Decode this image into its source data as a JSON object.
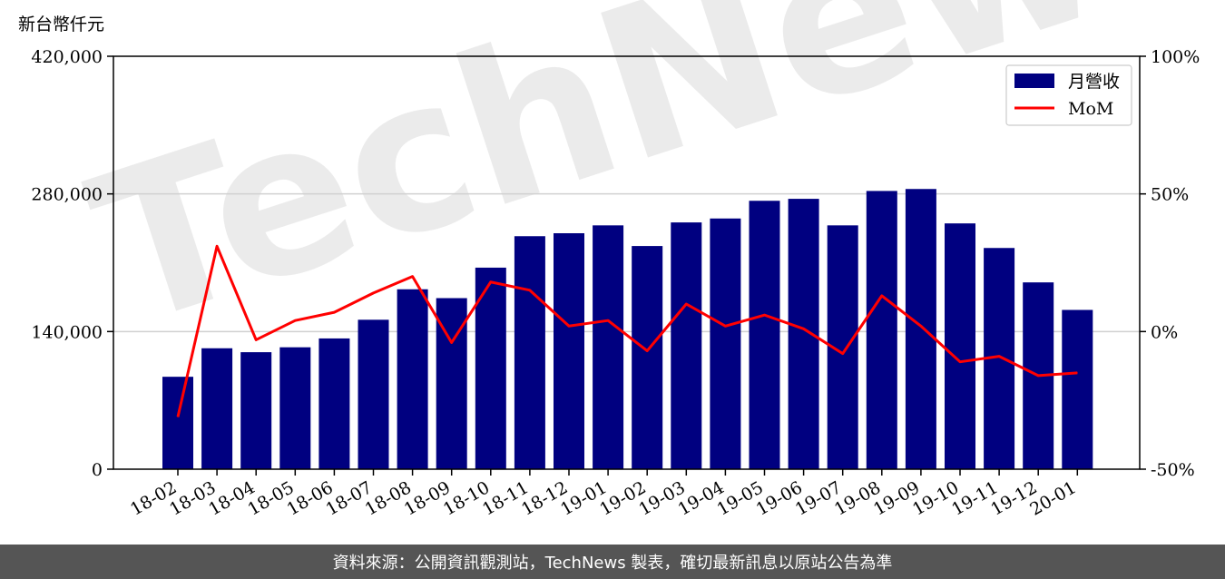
{
  "footer_text": "資料來源：公開資訊觀測站，TechNews 製表，確切最新訊息以原站公告為準",
  "watermark": "TechNews",
  "colors": {
    "bar": "#000080",
    "line": "#ff0000",
    "grid": "#d0d0d0",
    "watermark_red": "#f0b0b0"
  },
  "chart_data": {
    "type": "bar",
    "categories": [
      "18-02",
      "18-03",
      "18-04",
      "18-05",
      "18-06",
      "18-07",
      "18-08",
      "18-09",
      "18-10",
      "18-11",
      "18-12",
      "19-01",
      "19-02",
      "19-03",
      "19-04",
      "19-05",
      "19-06",
      "19-07",
      "19-08",
      "19-09",
      "19-10",
      "19-11",
      "19-12",
      "20-01"
    ],
    "series": [
      {
        "name": "月營收",
        "type": "bar",
        "axis": "left",
        "values": [
          94000,
          123000,
          119000,
          124000,
          133000,
          152000,
          183000,
          174000,
          205000,
          237000,
          240000,
          248000,
          227000,
          251000,
          255000,
          273000,
          275000,
          248000,
          283000,
          285000,
          250000,
          225000,
          190000,
          162000
        ]
      },
      {
        "name": "MoM",
        "type": "line",
        "axis": "right",
        "values": [
          -31,
          31,
          -3,
          4,
          7,
          14,
          20,
          -4,
          18,
          15,
          2,
          4,
          -7,
          10,
          2,
          6,
          1,
          -8,
          13,
          2,
          -11,
          -9,
          -16,
          -15
        ]
      }
    ],
    "ylabel": "新台幣仟元",
    "ylim": [
      0,
      420000
    ],
    "yticks": [
      "0",
      "140,000",
      "280,000",
      "420,000"
    ],
    "y2lim": [
      -50,
      100
    ],
    "y2ticks": [
      "-50%",
      "0%",
      "50%",
      "100%"
    ],
    "grid": "horizontal",
    "legend": "top-right"
  }
}
